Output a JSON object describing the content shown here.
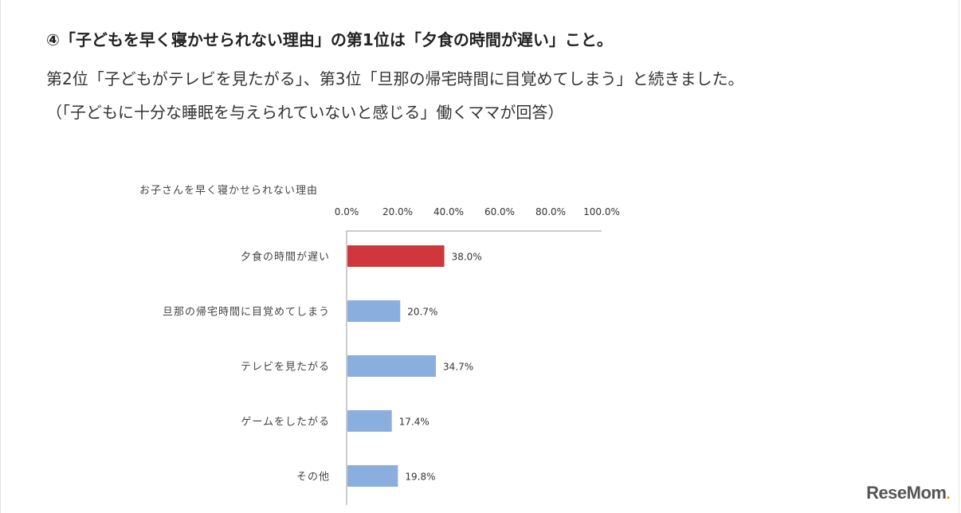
{
  "article": {
    "headline": "④「子どもを早く寝かせられない理由」の第1位は「夕食の時間が遅い」こと。",
    "line2": "第2位「子どもがテレビを見たがる」、第3位「旦那の帰宅時間に目覚めてしまう」と続きました。",
    "line3": "（「子どもに十分な睡眠を与えられていないと感じる」働くママが回答）"
  },
  "brand": {
    "logo_text": "ReseMom",
    "logo_dot": "."
  },
  "chart_data": {
    "type": "bar",
    "orientation": "horizontal",
    "title": "お子さんを早く寝かせられない理由",
    "categories": [
      "夕食の時間が遅い",
      "旦那の帰宅時間に目覚めてしまう",
      "テレビを見たがる",
      "ゲームをしたがる",
      "その他"
    ],
    "values": [
      38.0,
      20.7,
      34.7,
      17.4,
      19.8
    ],
    "value_labels": [
      "38.0%",
      "20.7%",
      "34.7%",
      "17.4%",
      "19.8%"
    ],
    "xlim": [
      0,
      100
    ],
    "x_ticks": [
      "0.0%",
      "20.0%",
      "40.0%",
      "60.0%",
      "80.0%",
      "100.0%"
    ],
    "axis_position": "top",
    "grid": false,
    "colors": {
      "highlight": "#d0373c",
      "default": "#8aaedd"
    },
    "highlight_index": 0
  }
}
